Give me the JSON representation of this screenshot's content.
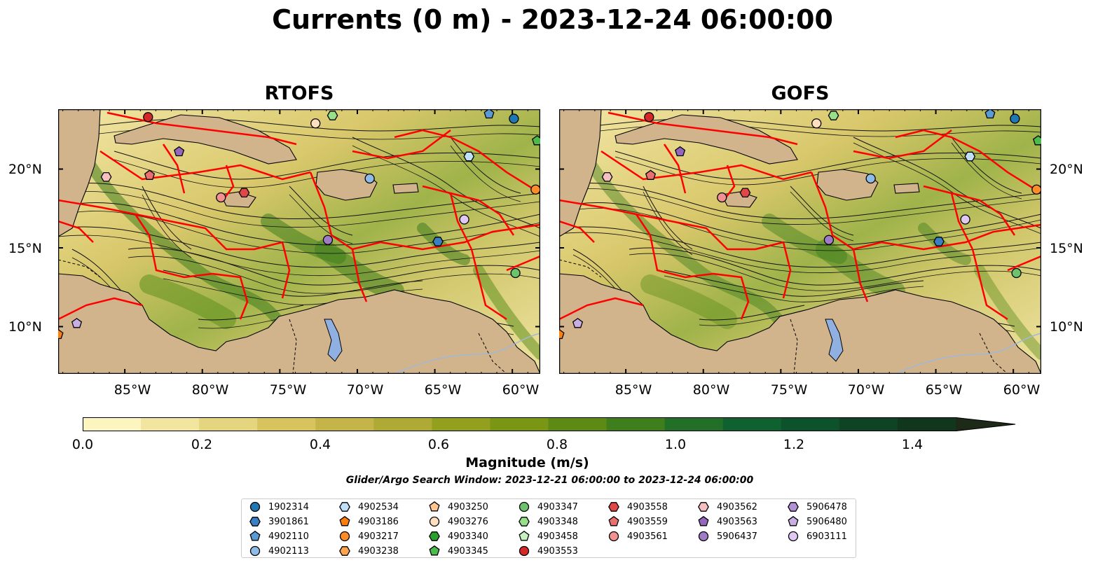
{
  "title": "Currents (0 m) - 2023-12-24 06:00:00",
  "panels": [
    {
      "title": "RTOFS"
    },
    {
      "title": "GOFS"
    }
  ],
  "map": {
    "lon_range": [
      -89.3,
      -58.2
    ],
    "lat_range": [
      7.0,
      23.8
    ],
    "lon_ticks": [
      "85°W",
      "80°W",
      "75°W",
      "70°W",
      "65°W",
      "60°W"
    ],
    "lat_ticks": [
      "20°N",
      "15°N",
      "10°N"
    ],
    "land_color": "#d2b48c",
    "boundary_color": "#ff0000"
  },
  "colorbar": {
    "label": "Magnitude (m/s)",
    "ticks": [
      "0.0",
      "0.2",
      "0.4",
      "0.6",
      "0.8",
      "1.0",
      "1.2",
      "1.4"
    ],
    "range": [
      0,
      1.5
    ],
    "extend": "max",
    "colors": [
      "#fdf5c0",
      "#f1e5a0",
      "#e4d57e",
      "#d8c45e",
      "#c5b548",
      "#aeaa33",
      "#93a01e",
      "#7b9612",
      "#5c8a15",
      "#3f7e1d",
      "#226f28",
      "#0f6230",
      "#0c522a",
      "#0e4424",
      "#11361e",
      "#1c2a17"
    ]
  },
  "search_window": "Glider/Argo Search Window: 2023-12-21 06:00:00 to 2023-12-24 06:00:00",
  "legend": [
    {
      "id": "1902314",
      "marker": "circle",
      "color": "#1f77b4"
    },
    {
      "id": "3901861",
      "marker": "hexagon",
      "color": "#3a7fc1"
    },
    {
      "id": "4902110",
      "marker": "pentagon",
      "color": "#5b9bd5"
    },
    {
      "id": "4902113",
      "marker": "circle",
      "color": "#8fbce6"
    },
    {
      "id": "4902534",
      "marker": "hexagon",
      "color": "#bfe0f7"
    },
    {
      "id": "4903186",
      "marker": "pentagon",
      "color": "#ff7f0e"
    },
    {
      "id": "4903217",
      "marker": "circle",
      "color": "#ff8c2a"
    },
    {
      "id": "4903238",
      "marker": "hexagon",
      "color": "#ffa54f"
    },
    {
      "id": "4903250",
      "marker": "pentagon",
      "color": "#ffc48f"
    },
    {
      "id": "4903276",
      "marker": "circle",
      "color": "#ffdfbf"
    },
    {
      "id": "4903340",
      "marker": "hexagon",
      "color": "#2ca02c"
    },
    {
      "id": "4903345",
      "marker": "pentagon",
      "color": "#4cbb4c"
    },
    {
      "id": "4903347",
      "marker": "circle",
      "color": "#6cc36c"
    },
    {
      "id": "4903348",
      "marker": "hexagon",
      "color": "#98df8a"
    },
    {
      "id": "4903458",
      "marker": "pentagon",
      "color": "#c7f2c0"
    },
    {
      "id": "4903553",
      "marker": "circle",
      "color": "#d62728"
    },
    {
      "id": "4903558",
      "marker": "hexagon",
      "color": "#e04848"
    },
    {
      "id": "4903559",
      "marker": "pentagon",
      "color": "#ea6f6f"
    },
    {
      "id": "4903561",
      "marker": "circle",
      "color": "#f29191"
    },
    {
      "id": "4903562",
      "marker": "hexagon",
      "color": "#f7c0c0"
    },
    {
      "id": "4903563",
      "marker": "pentagon",
      "color": "#9467bd"
    },
    {
      "id": "5906437",
      "marker": "circle",
      "color": "#a07cc8"
    },
    {
      "id": "5906478",
      "marker": "hexagon",
      "color": "#b391d6"
    },
    {
      "id": "5906480",
      "marker": "pentagon",
      "color": "#c8aee3"
    },
    {
      "id": "6903111",
      "marker": "circle",
      "color": "#e0c8f2"
    }
  ],
  "floats": [
    {
      "id": "4903553",
      "lon": -83.5,
      "lat": 23.3
    },
    {
      "id": "4903348",
      "lon": -71.6,
      "lat": 23.4
    },
    {
      "id": "4903276",
      "lon": -72.7,
      "lat": 22.9
    },
    {
      "id": "4902110",
      "lon": -61.5,
      "lat": 23.5
    },
    {
      "id": "1902314",
      "lon": -59.9,
      "lat": 23.2
    },
    {
      "id": "4903345",
      "lon": -58.4,
      "lat": 21.8
    },
    {
      "id": "4903563",
      "lon": -81.5,
      "lat": 21.1
    },
    {
      "id": "4902534",
      "lon": -62.8,
      "lat": 20.8
    },
    {
      "id": "4903562",
      "lon": -86.2,
      "lat": 19.5
    },
    {
      "id": "4903559",
      "lon": -83.4,
      "lat": 19.6
    },
    {
      "id": "4902113",
      "lon": -69.2,
      "lat": 19.4
    },
    {
      "id": "4903217",
      "lon": -58.5,
      "lat": 18.7
    },
    {
      "id": "4903558",
      "lon": -77.3,
      "lat": 18.5
    },
    {
      "id": "4903561",
      "lon": -78.8,
      "lat": 18.2
    },
    {
      "id": "6903111",
      "lon": -63.1,
      "lat": 16.8
    },
    {
      "id": "5906437",
      "lon": -71.9,
      "lat": 15.5
    },
    {
      "id": "3901861",
      "lon": -64.8,
      "lat": 15.4
    },
    {
      "id": "4903347",
      "lon": -59.8,
      "lat": 13.4
    },
    {
      "id": "5906480",
      "lon": -88.1,
      "lat": 10.2
    },
    {
      "id": "4903186",
      "lon": -89.3,
      "lat": 9.5
    }
  ]
}
